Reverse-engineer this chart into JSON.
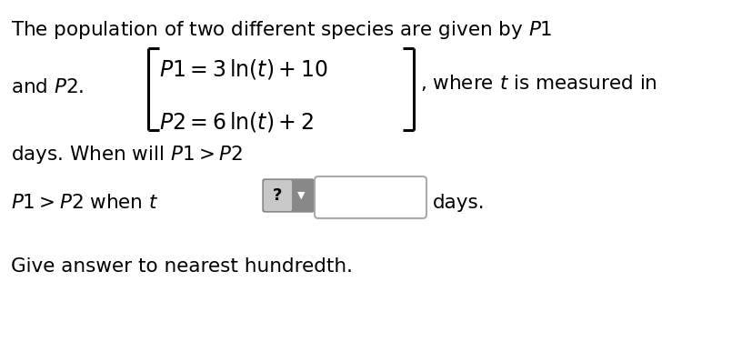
{
  "bg_color": "#ffffff",
  "text_color": "#000000",
  "line1": "The population of two different species are given by $\\mathit{P}1$",
  "line2_prefix": "and $\\mathit{P}2$.",
  "eq1": "$\\mathit{P}1 = 3\\,\\mathrm{ln}(t) + 10$",
  "eq2": "$\\mathit{P}2 = 6\\,\\mathrm{ln}(t) + 2$",
  "line2_suffix": ", where $t$ is measured in",
  "line3": "days. When will $\\mathit{P}1 > \\mathit{P}2$",
  "line4_prefix": "$\\mathit{P}1 > \\mathit{P}2$ when $t$",
  "line4_suffix": "days.",
  "line5": "Give answer to nearest hundredth.",
  "font_size_main": 15.5,
  "font_size_eq": 17
}
